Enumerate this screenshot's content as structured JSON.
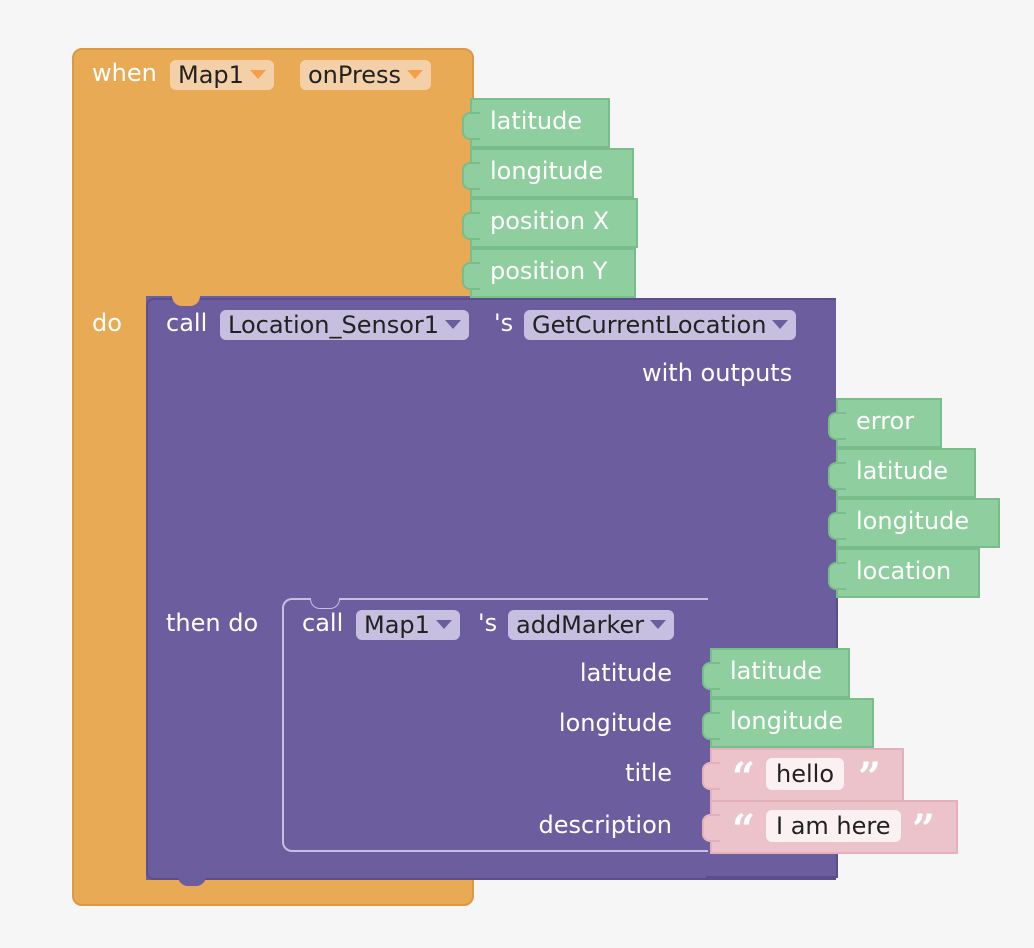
{
  "event_block": {
    "when_label": "when",
    "component": "Map1",
    "event": "onPress",
    "params": [
      "latitude",
      "longitude",
      "position X",
      "position Y"
    ],
    "do_label": "do"
  },
  "location_call": {
    "call_label": "call",
    "component": "Location_Sensor1",
    "possessive": "'s",
    "method": "GetCurrentLocation",
    "with_outputs_label": "with outputs",
    "outputs": [
      "error",
      "latitude",
      "longitude",
      "location"
    ],
    "then_do_label": "then do"
  },
  "marker_call": {
    "call_label": "call",
    "component": "Map1",
    "possessive": "'s",
    "method": "addMarker",
    "arg_labels": [
      "latitude",
      "longitude",
      "title",
      "description"
    ],
    "arg_values": {
      "latitude": "latitude",
      "longitude": "longitude",
      "title": "hello",
      "description": "I am here"
    }
  },
  "colors": {
    "event": "#e8aa55",
    "procedure": "#6b5d9e",
    "variable": "#8fcf9f",
    "text": "#ecc3cb"
  }
}
